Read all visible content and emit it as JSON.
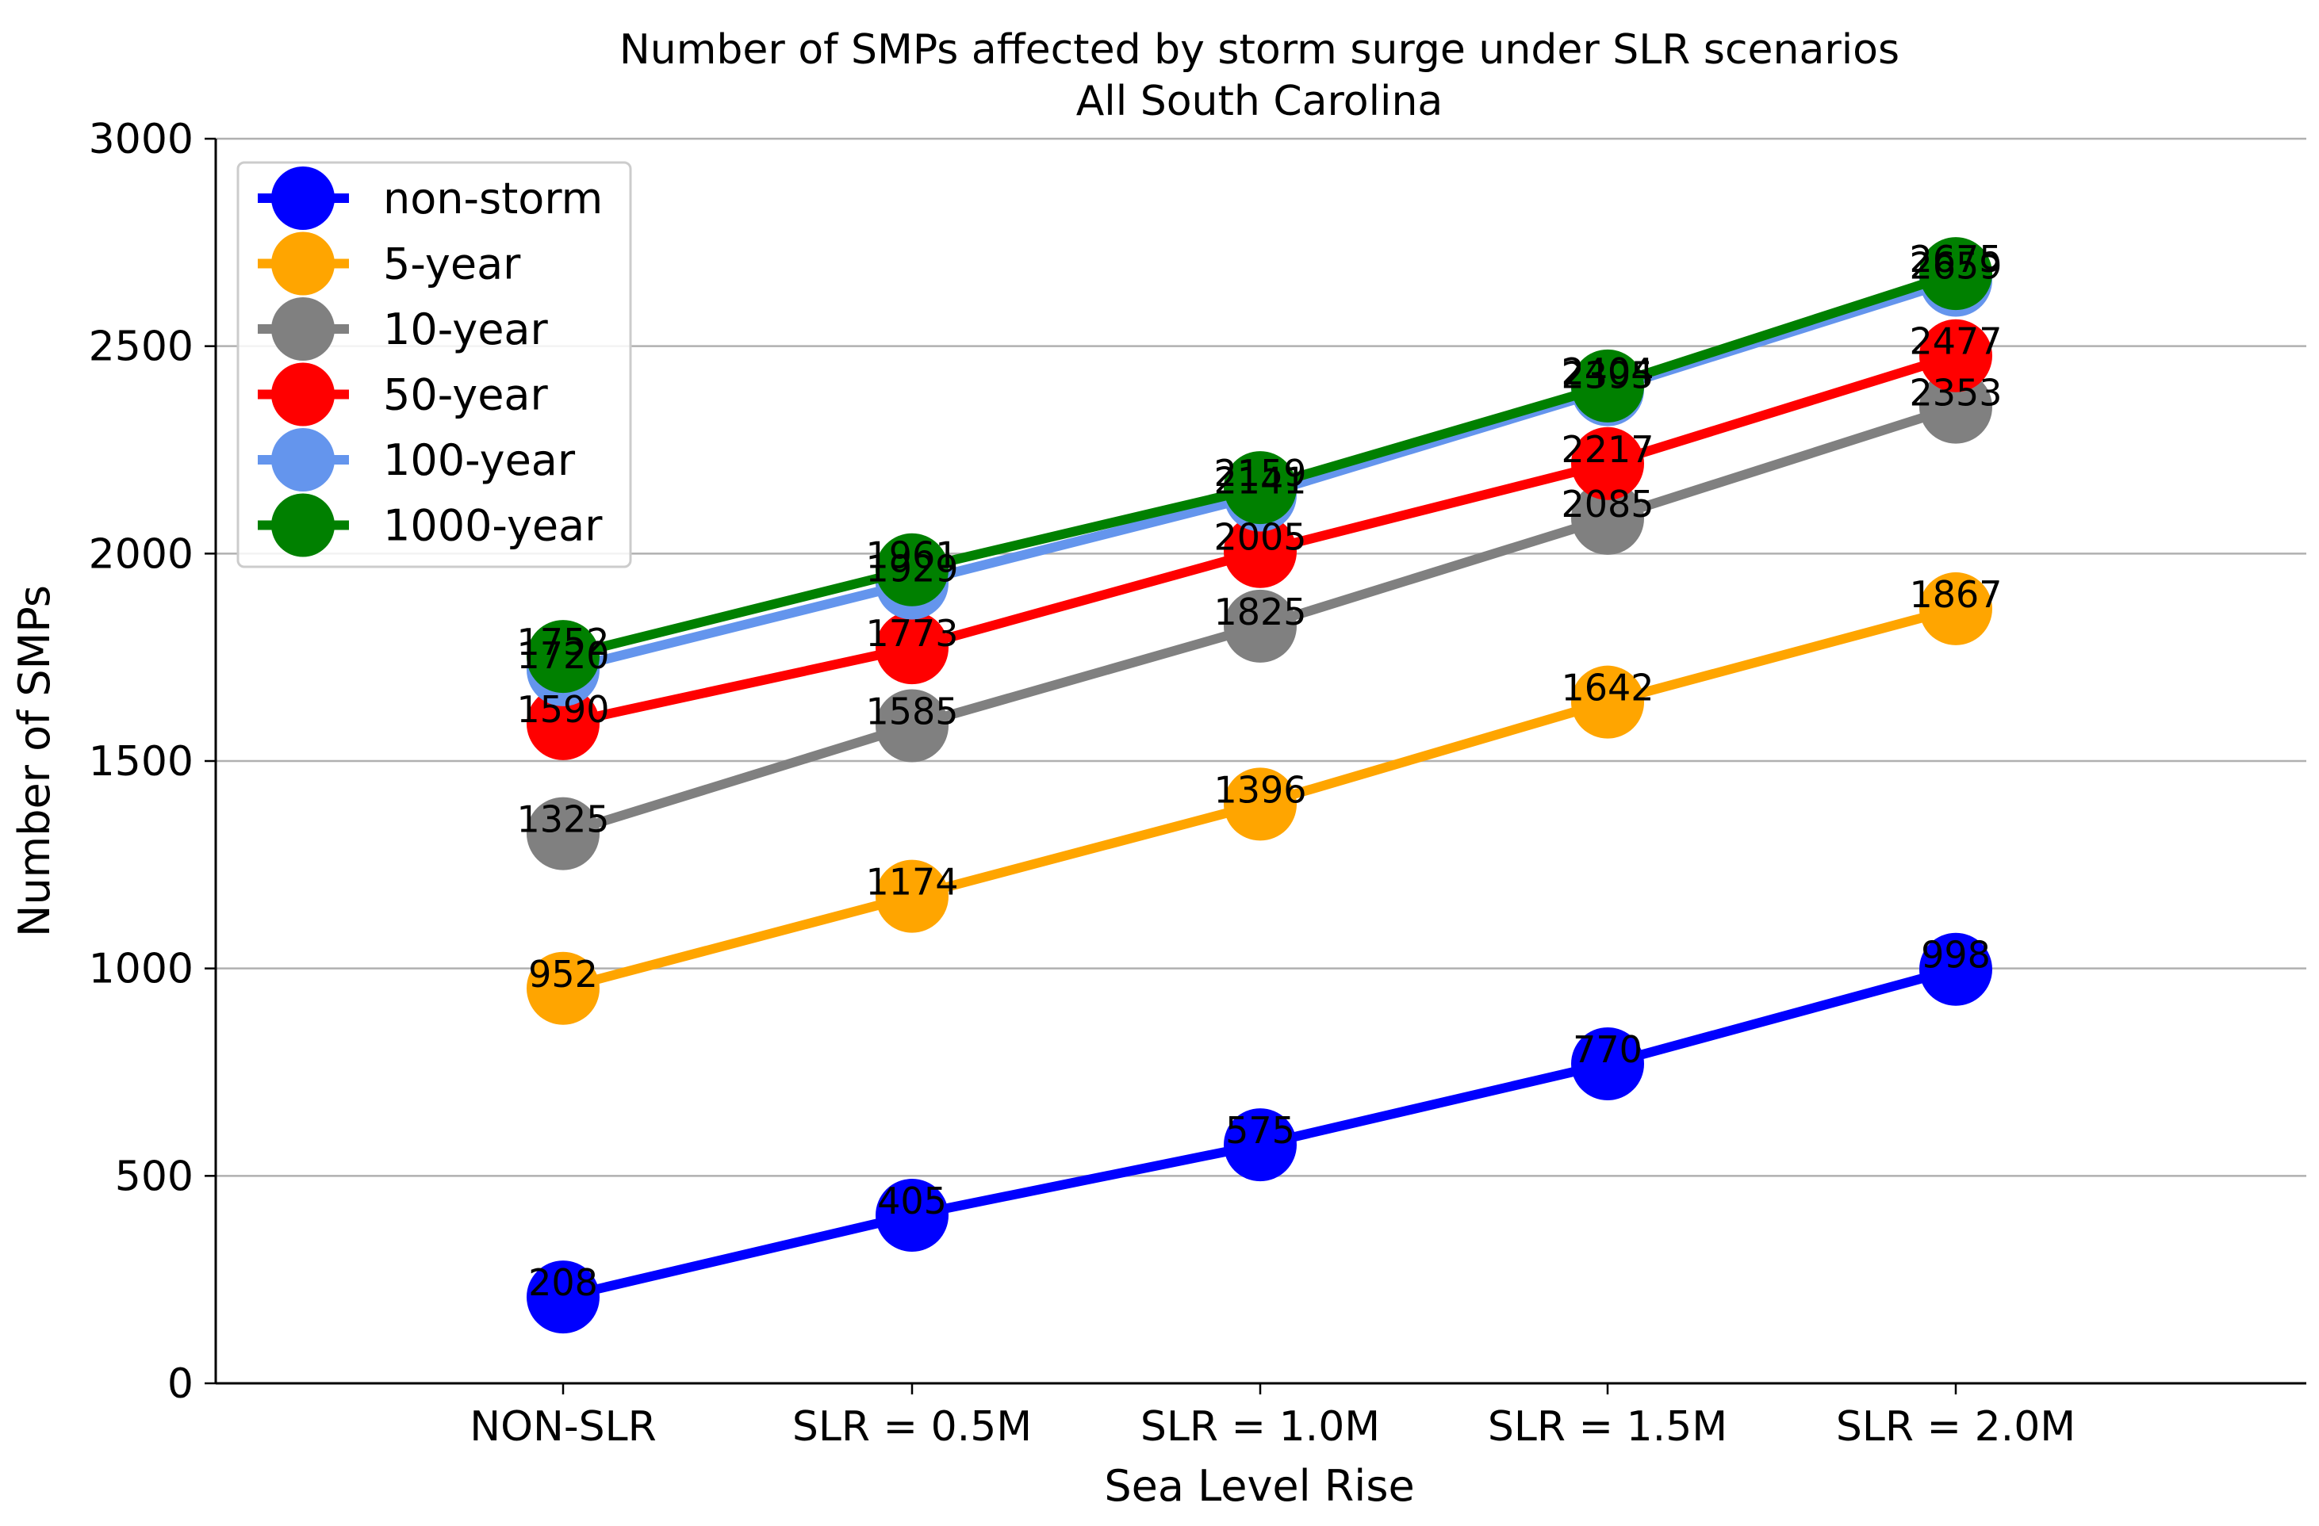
{
  "chart_data": {
    "type": "line",
    "title": "Number of SMPs affected by storm surge under SLR scenarios",
    "subtitle": "All South Carolina",
    "xlabel": "Sea Level Rise",
    "ylabel": "Number of SMPs",
    "categories": [
      "NON-SLR",
      "SLR = 0.5M",
      "SLR = 1.0M",
      "SLR = 1.5M",
      "SLR = 2.0M"
    ],
    "ylim": [
      0,
      3000
    ],
    "yticks": [
      "0",
      "500",
      "1000",
      "1500",
      "2000",
      "2500",
      "3000"
    ],
    "grid": "horizontal",
    "legend_position": "upper-left",
    "series": [
      {
        "name": "non-storm",
        "color": "#0000ff",
        "values": [
          208,
          405,
          575,
          770,
          998
        ]
      },
      {
        "name": "5-year",
        "color": "#ffa500",
        "values": [
          952,
          1174,
          1396,
          1642,
          1867
        ]
      },
      {
        "name": "10-year",
        "color": "#808080",
        "values": [
          1325,
          1585,
          1825,
          2085,
          2353
        ]
      },
      {
        "name": "50-year",
        "color": "#ff0000",
        "values": [
          1590,
          1773,
          2005,
          2217,
          2477
        ]
      },
      {
        "name": "100-year",
        "color": "#6495ed",
        "values": [
          1720,
          1929,
          2141,
          2395,
          2659
        ]
      },
      {
        "name": "1000-year",
        "color": "#008000",
        "values": [
          1752,
          1961,
          2159,
          2404,
          2675
        ]
      }
    ]
  }
}
